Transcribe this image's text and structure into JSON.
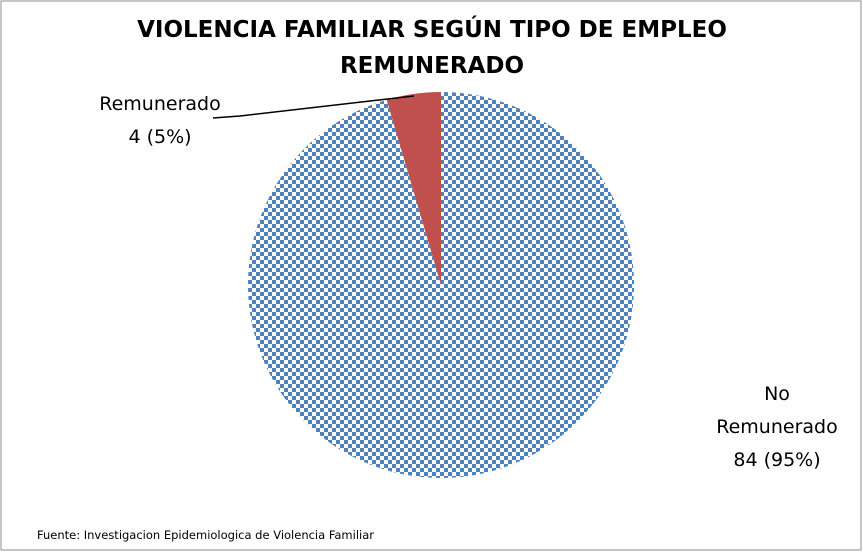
{
  "chart_data": {
    "type": "pie",
    "title": "VIOLENCIA FAMILIAR SEGÚN TIPO DE EMPLEO REMUNERADO",
    "categories": [
      "No Remunerado",
      "Remunerado"
    ],
    "values": [
      84,
      4
    ],
    "value_labels": [
      "84 (95%)",
      "4 (5%)"
    ],
    "colors": [
      "#4f81bd",
      "#c0504d"
    ],
    "source": "Fuente: Investigacion Epidemiologica de Violencia Familiar"
  }
}
